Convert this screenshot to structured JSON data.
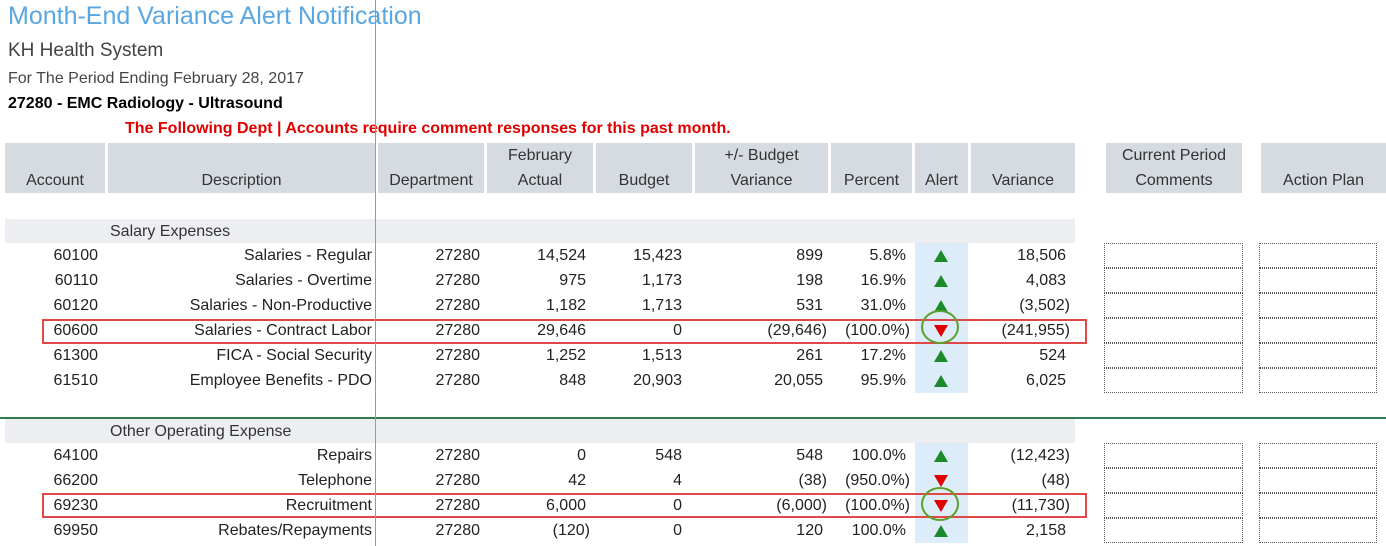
{
  "header": {
    "title": "Month-End Variance Alert Notification",
    "organization": "KH Health System",
    "period": "For The Period Ending February 28, 2017",
    "department": "27280 - EMC Radiology - Ultrasound",
    "notice": "The Following Dept | Accounts require comment responses for this past month."
  },
  "table": {
    "columns": [
      "Account",
      "Description",
      "Department",
      "February Actual",
      "Budget",
      "+/- Budget Variance",
      "Percent",
      "Alert",
      "Variance",
      "Current Period Comments",
      "Action Plan"
    ],
    "sections": [
      {
        "name": "Salary Expenses",
        "rows": [
          [
            "60100",
            "Salaries - Regular",
            "27280",
            "14,524",
            "15,423",
            "899",
            "5.8%",
            "18,506"
          ],
          [
            "60110",
            "Salaries - Overtime",
            "27280",
            "975",
            "1,173",
            "198",
            "16.9%",
            "4,083"
          ],
          [
            "60120",
            "Salaries - Non-Productive",
            "27280",
            "1,182",
            "1,713",
            "531",
            "31.0%",
            "(3,502)"
          ],
          [
            "60600",
            "Salaries - Contract Labor",
            "27280",
            "29,646",
            "0",
            "(29,646)",
            "(100.0%)",
            "(241,955)"
          ],
          [
            "61300",
            "FICA - Social Security",
            "27280",
            "1,252",
            "1,513",
            "261",
            "17.2%",
            "524"
          ],
          [
            "61510",
            "Employee Benefits - PDO",
            "27280",
            "848",
            "20,903",
            "20,055",
            "95.9%",
            "6,025"
          ]
        ]
      },
      {
        "name": "Other Operating Expense",
        "rows": [
          [
            "64100",
            "Repairs",
            "27280",
            "0",
            "548",
            "548",
            "100.0%",
            "(12,423)"
          ],
          [
            "66200",
            "Telephone",
            "27280",
            "42",
            "4",
            "(38)",
            "(950.0%)",
            "(48)"
          ],
          [
            "69230",
            "Recruitment",
            "27280",
            "6,000",
            "0",
            "(6,000)",
            "(100.0%)",
            "(11,730)"
          ],
          [
            "69950",
            "Rebates/Repayments",
            "27280",
            "(120)",
            "0",
            "120",
            "100.0%",
            "2,158"
          ]
        ]
      }
    ]
  }
}
